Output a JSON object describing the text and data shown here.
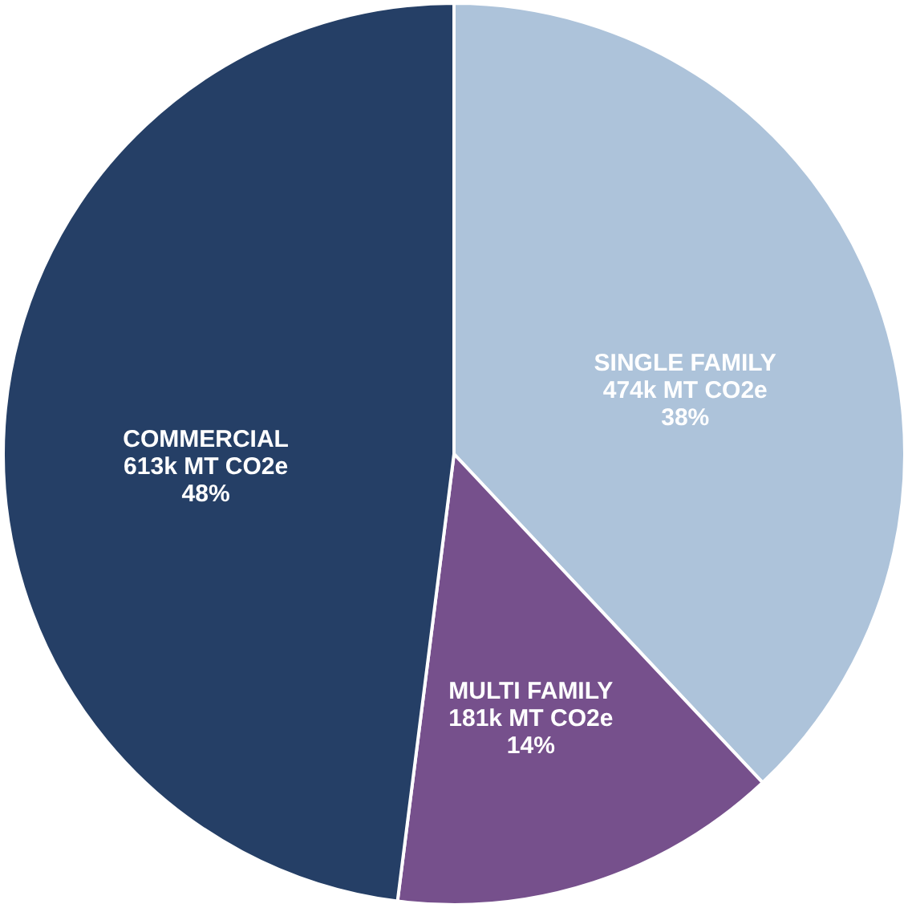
{
  "chart_data": {
    "type": "pie",
    "categories": [
      "SINGLE FAMILY",
      "MULTI FAMILY",
      "COMMERCIAL"
    ],
    "values": [
      38,
      14,
      48
    ],
    "value_labels": [
      "474k MT CO2e\n38%",
      "181k MT CO2e\n14%",
      "613k MT CO2e\n48%"
    ],
    "colors": [
      "#adc3da",
      "#76508c",
      "#253f66"
    ]
  }
}
